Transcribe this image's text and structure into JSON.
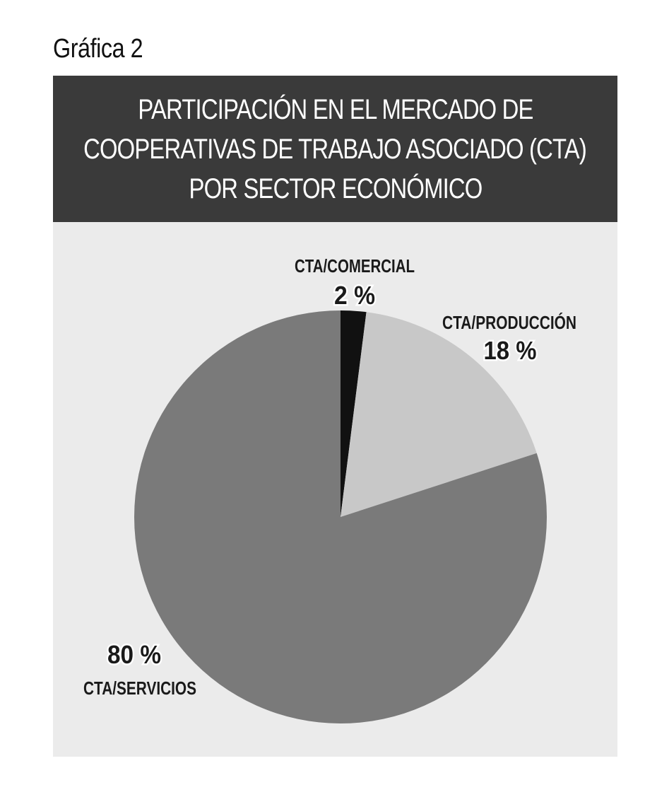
{
  "figure_label": "Gráfica 2",
  "colors": {
    "panel_background": "#ebebeb",
    "title_background": "#3a3a3a",
    "title_text": "#ffffff",
    "slice_comercial": "#111111",
    "slice_produccion": "#c8c8c8",
    "slice_servicios": "#7a7a7a"
  },
  "chart_data": {
    "type": "pie",
    "title": [
      "PARTICIPACIÓN EN EL MERCADO DE",
      "COOPERATIVAS DE TRABAJO ASOCIADO (CTA)",
      "POR SECTOR ECONÓMICO"
    ],
    "start_angle_deg": 0,
    "direction": "clockwise",
    "legend": "none",
    "slices": [
      {
        "name": "CTA/COMERCIAL",
        "value": 2,
        "label": "2 %"
      },
      {
        "name": "CTA/PRODUCCIÓN",
        "value": 18,
        "label": "18 %"
      },
      {
        "name": "CTA/SERVICIOS",
        "value": 80,
        "label": "80 %"
      }
    ]
  }
}
